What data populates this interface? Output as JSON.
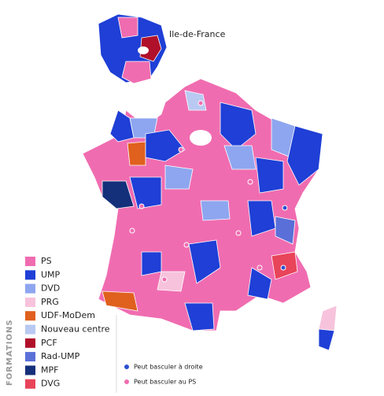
{
  "inset_label": "Ile-de-France",
  "legend": {
    "title": "FORMATIONS",
    "items": [
      {
        "label": "PS",
        "color": "#f06cb0"
      },
      {
        "label": "UMP",
        "color": "#1f3fd6"
      },
      {
        "label": "DVD",
        "color": "#8ea6ef"
      },
      {
        "label": "PRG",
        "color": "#f7c3dc"
      },
      {
        "label": "UDF-MoDem",
        "color": "#e0601e"
      },
      {
        "label": "Nouveau centre",
        "color": "#b9c9f2"
      },
      {
        "label": "PCF",
        "color": "#b0102a"
      },
      {
        "label": "Rad-UMP",
        "color": "#5a6fd8"
      },
      {
        "label": "MPF",
        "color": "#14307a"
      },
      {
        "label": "DVG",
        "color": "#e8445a"
      }
    ]
  },
  "markers": [
    {
      "label": "Peut basculer à droite",
      "color": "#2a4fd0"
    },
    {
      "label": "Peut basculer au PS",
      "color": "#f06cb0"
    }
  ]
}
